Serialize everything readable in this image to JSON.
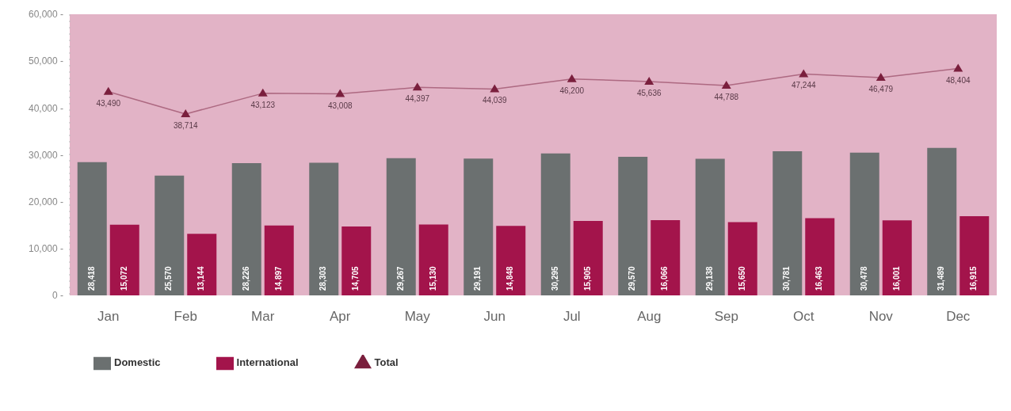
{
  "chart_data": {
    "type": "bar",
    "categories": [
      "Jan",
      "Feb",
      "Mar",
      "Apr",
      "May",
      "Jun",
      "Jul",
      "Aug",
      "Sep",
      "Oct",
      "Nov",
      "Dec"
    ],
    "series": [
      {
        "name": "Domestic",
        "color": "#6b7070",
        "values": [
          28418,
          25570,
          28226,
          28303,
          29267,
          29191,
          30295,
          29570,
          29138,
          30781,
          30478,
          31489
        ],
        "value_labels": [
          "28,418",
          "25,570",
          "28,226",
          "28,303",
          "29,267",
          "29,191",
          "30,295",
          "29,570",
          "29,138",
          "30,781",
          "30,478",
          "31,489"
        ]
      },
      {
        "name": "International",
        "color": "#a3144b",
        "values": [
          15072,
          13144,
          14897,
          14705,
          15130,
          14848,
          15905,
          16066,
          15650,
          16463,
          16001,
          16915
        ],
        "value_labels": [
          "15,072",
          "13,144",
          "14,897",
          "14,705",
          "15,130",
          "14,848",
          "15,905",
          "16,066",
          "15,650",
          "16,463",
          "16,001",
          "16,915"
        ]
      },
      {
        "name": "Total",
        "type": "line",
        "color": "#7a1f3d",
        "marker": "triangle",
        "values": [
          43490,
          38714,
          43123,
          43008,
          44397,
          44039,
          46200,
          45636,
          44788,
          47244,
          46479,
          48404
        ],
        "value_labels": [
          "43,490",
          "38,714",
          "43,123",
          "43,008",
          "44,397",
          "44,039",
          "46,200",
          "45,636",
          "44,788",
          "47,244",
          "46,479",
          "48,404"
        ]
      }
    ],
    "ylim": [
      0,
      60000
    ],
    "yticks": [
      {
        "value": 0,
        "label": "0 -"
      },
      {
        "value": 10000,
        "label": "10,000 -"
      },
      {
        "value": 20000,
        "label": "20,000 -"
      },
      {
        "value": 30000,
        "label": "30,000 -"
      },
      {
        "value": 40000,
        "label": "40,000 -"
      },
      {
        "value": 50000,
        "label": "50,000 -"
      },
      {
        "value": 60000,
        "label": "60,000 -"
      }
    ],
    "legend": "bottom"
  }
}
